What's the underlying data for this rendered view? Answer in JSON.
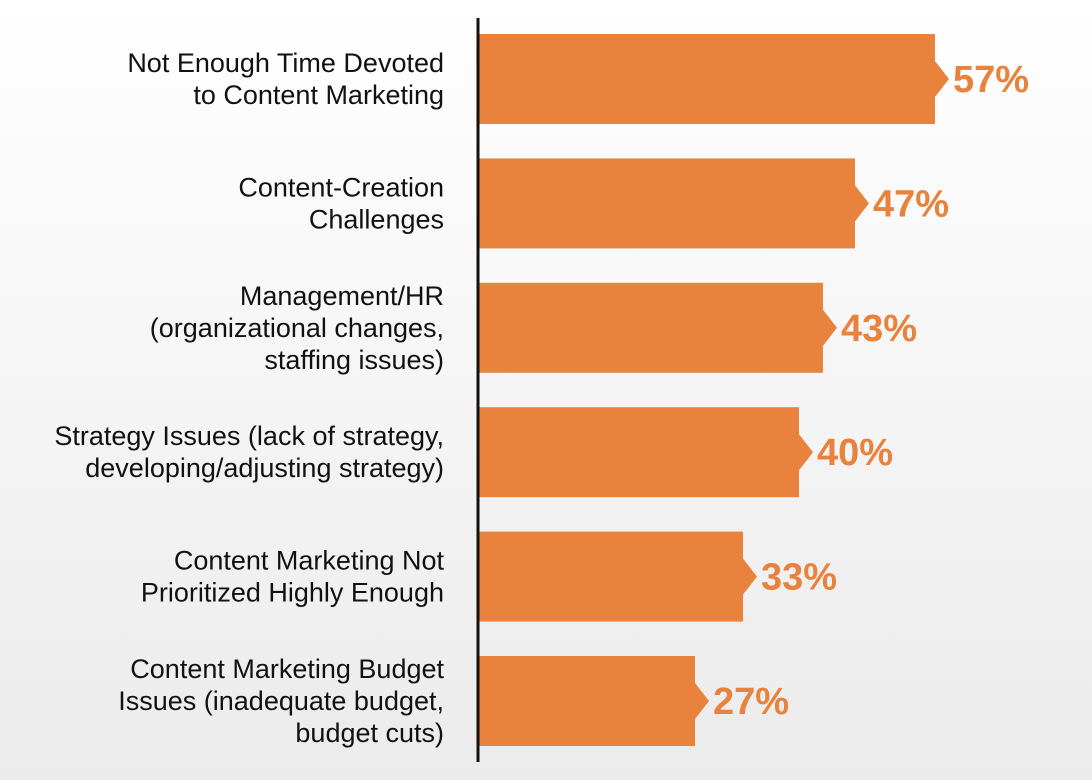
{
  "chart_data": {
    "type": "bar",
    "orientation": "horizontal",
    "title": "",
    "xlabel": "",
    "ylabel": "",
    "xlim": [
      0,
      70
    ],
    "grid": false,
    "categories": [
      [
        "Not Enough Time Devoted",
        "to Content Marketing"
      ],
      [
        "Content-Creation",
        "Challenges"
      ],
      [
        "Management/HR",
        "(organizational changes,",
        "staffing issues)"
      ],
      [
        "Strategy Issues (lack of strategy,",
        "developing/adjusting strategy)"
      ],
      [
        "Content Marketing Not",
        "Prioritized Highly Enough"
      ],
      [
        "Content Marketing Budget",
        "Issues (inadequate budget,",
        "budget cuts)"
      ]
    ],
    "values": [
      57,
      47,
      43,
      40,
      33,
      27
    ],
    "value_labels": [
      "57%",
      "47%",
      "43%",
      "40%",
      "33%",
      "27%"
    ],
    "colors": {
      "bar": "#E8823C",
      "value_text": "#E8823C",
      "axis": "#111111",
      "text": "#111111"
    }
  }
}
